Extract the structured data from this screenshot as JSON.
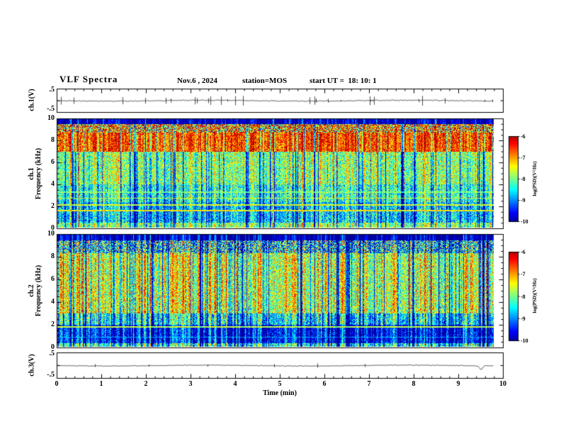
{
  "header": {
    "title": "VLF Spectra",
    "date": "Nov.6 , 2024",
    "station": "station=MOS",
    "start_ut": "start UT =  18: 10: 1"
  },
  "axes": {
    "x_label": "Time (min)",
    "x_ticks": [
      "0",
      "1",
      "2",
      "3",
      "4",
      "5",
      "6",
      "7",
      "8",
      "9",
      "10"
    ],
    "freq_ticks": [
      "10",
      "8",
      "6",
      "4",
      "2",
      "0"
    ],
    "volt_tick_top": ".5",
    "volt_tick_bottom": "-.5",
    "ch1_volt_label": "ch.1(V)",
    "ch3_volt_label": "ch.3(V)",
    "spec1_ch": "ch.1",
    "spec2_ch": "ch.2",
    "freq_label": "Frequency (kHz)"
  },
  "colorbar": {
    "ticks": [
      "-6",
      "-7",
      "-8",
      "-9",
      "-10"
    ],
    "label": "log(PSD)(V²/Hz)",
    "zlim": [
      -10,
      -6
    ]
  },
  "colors": {
    "background": "#ffffff",
    "frame": "#000000",
    "colormap": "jet"
  },
  "chart_data": [
    {
      "type": "line",
      "name": "ch1-voltage",
      "ylabel": "ch.1(V)",
      "ylim": [
        -0.5,
        0.5
      ],
      "xlim": [
        0,
        10
      ],
      "summary": "near-zero voltage trace with small impulsive spikes",
      "profile": {
        "seed": 11,
        "jitter": 1.4,
        "spike_prob": 0.045,
        "spike": 6,
        "end_dip": 0
      }
    },
    {
      "type": "heatmap",
      "name": "ch1-spectrogram",
      "ylabel": "ch.1 Frequency (kHz)",
      "xlabel": "Time (min)",
      "xlim": [
        0,
        10
      ],
      "ylim": [
        0,
        10
      ],
      "x_data_end": 9.8,
      "zlabel": "log(PSD)(V²/Hz)",
      "zlim": [
        -10,
        -6
      ],
      "colormap": "jet",
      "profile": {
        "seed": 21,
        "streak": 1.0,
        "noise": 0.85,
        "deep_prob": 0.13,
        "bands": [
          {
            "range": [
              9.6,
              10.01
            ],
            "level": -9.8,
            "noise": 0.3
          },
          {
            "range": [
              8.8,
              9.6
            ],
            "level": -7.0,
            "noise": 1.8
          },
          {
            "range": [
              7.0,
              8.8
            ],
            "level": -6.6
          },
          {
            "range": [
              4.0,
              7.0
            ],
            "level": -7.9
          },
          {
            "range": [
              2.4,
              4.0
            ],
            "level": -8.3
          },
          {
            "range": [
              0.5,
              2.4
            ],
            "level": -8.7
          },
          {
            "range": [
              0.0,
              0.5
            ],
            "level": -7.9
          }
        ],
        "hlines": [
          {
            "y": 1.6,
            "w": 0.06,
            "level": -7.3
          },
          {
            "y": 2.1,
            "w": 0.06,
            "level": -7.5
          },
          {
            "y": 2.75,
            "w": 0.05,
            "level": -7.6
          },
          {
            "y": 3.3,
            "w": 0.05,
            "level": -7.9
          }
        ]
      }
    },
    {
      "type": "heatmap",
      "name": "ch2-spectrogram",
      "ylabel": "ch.2 Frequency (kHz)",
      "xlabel": "Time (min)",
      "xlim": [
        0,
        10
      ],
      "ylim": [
        0,
        10
      ],
      "x_data_end": 9.8,
      "zlabel": "log(PSD)(V²/Hz)",
      "zlim": [
        -10,
        -6
      ],
      "colormap": "jet",
      "profile": {
        "seed": 33,
        "streak": 1.1,
        "noise": 0.9,
        "deep_prob": 0.17,
        "bands": [
          {
            "range": [
              9.5,
              10.01
            ],
            "level": -9.8,
            "noise": 0.3
          },
          {
            "range": [
              8.4,
              9.5
            ],
            "level": -8.5,
            "noise": 1.6
          },
          {
            "range": [
              3.0,
              8.4
            ],
            "level": -7.6
          },
          {
            "range": [
              2.0,
              3.0
            ],
            "level": -8.5
          },
          {
            "range": [
              0.35,
              2.0
            ],
            "level": -9.4,
            "noise": 0.7
          },
          {
            "range": [
              0.0,
              0.35
            ],
            "level": -8.3
          }
        ],
        "hlines": [
          {
            "y": 1.8,
            "w": 0.07,
            "level": -7.6
          },
          {
            "y": 0.9,
            "w": 0.04,
            "level": -8.8
          }
        ]
      }
    },
    {
      "type": "line",
      "name": "ch3-voltage",
      "ylabel": "ch.3(V)",
      "ylim": [
        -0.5,
        0.5
      ],
      "xlim": [
        0,
        10
      ],
      "summary": "near-zero voltage trace with slow drift and a small dip near 9.7 min",
      "profile": {
        "seed": 44,
        "jitter": 1.0,
        "spike_prob": 0.015,
        "spike": 3,
        "end_dip": 5
      }
    }
  ]
}
